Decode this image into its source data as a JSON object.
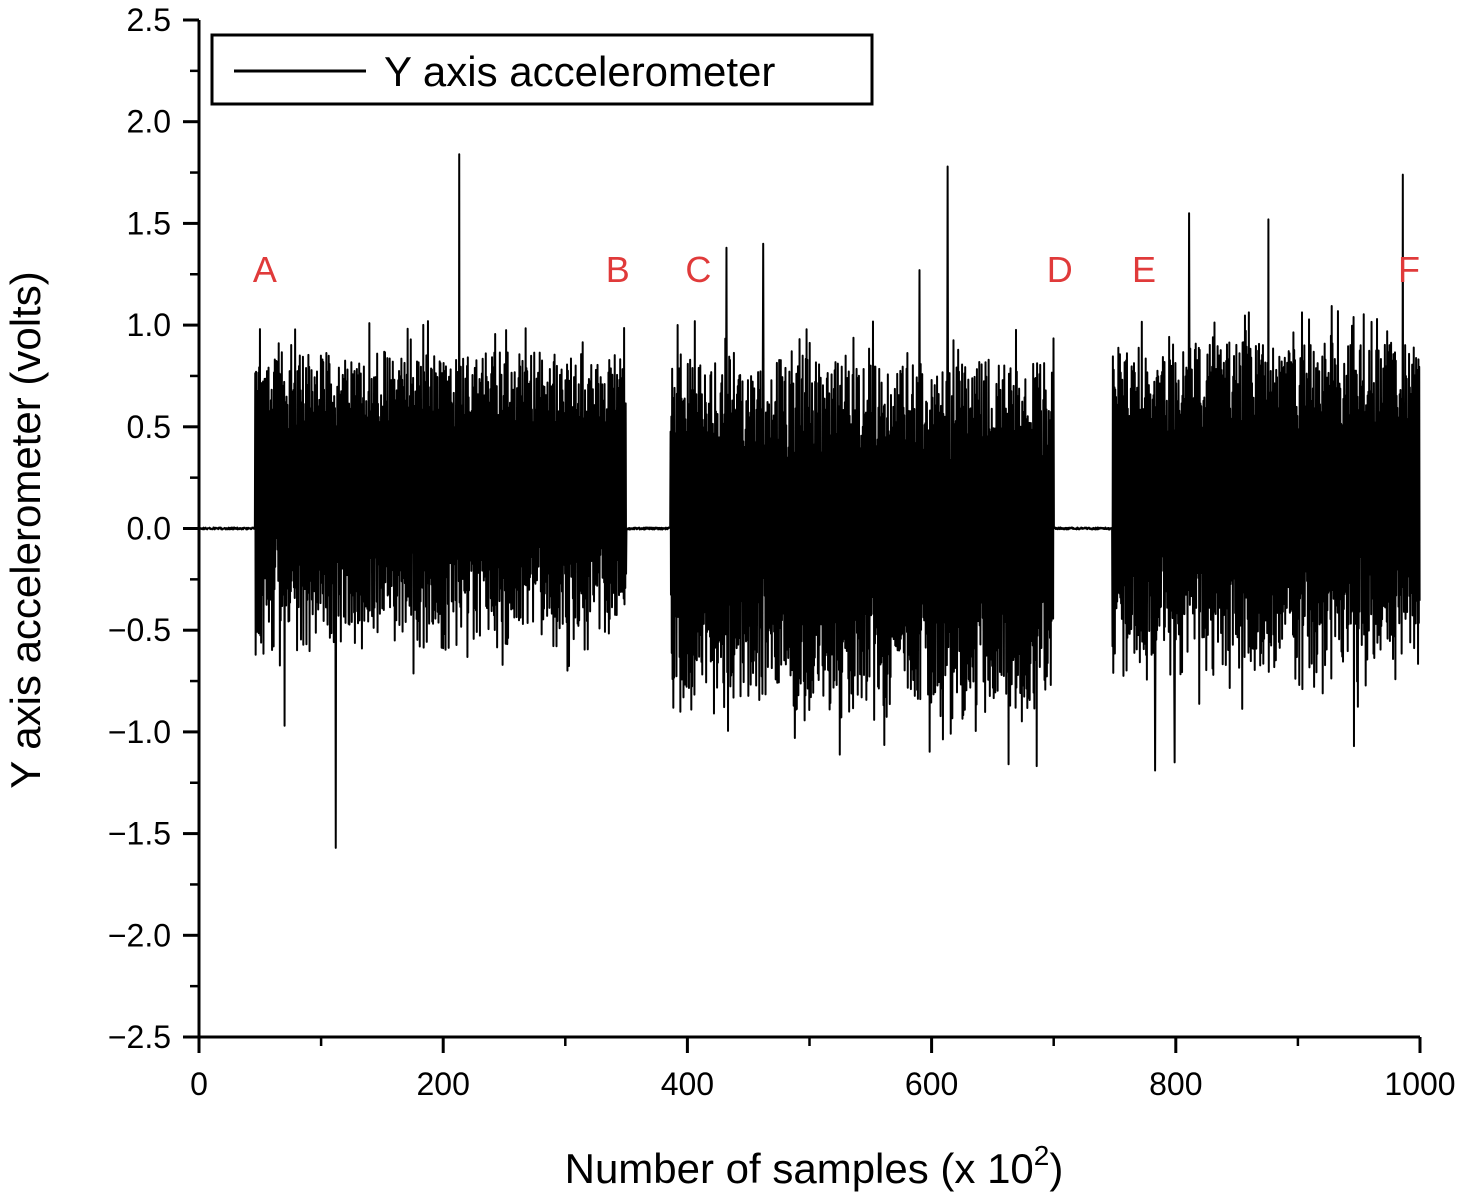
{
  "chart_data": {
    "type": "line",
    "xlabel": "Number of samples (x 10",
    "xlabel_superscript": "2",
    "xlabel_suffix": ")",
    "ylabel": "Y axis accelerometer (volts)",
    "xlim": [
      0,
      1000
    ],
    "ylim": [
      -2.5,
      2.5
    ],
    "x_ticks": [
      0,
      200,
      400,
      600,
      800,
      1000
    ],
    "x_tick_labels": [
      "0",
      "200",
      "400",
      "600",
      "800",
      "1000"
    ],
    "y_ticks": [
      2.5,
      2.0,
      1.5,
      1.0,
      0.5,
      0.0,
      -0.5,
      -1.0,
      -1.5,
      -2.0,
      -2.5
    ],
    "y_tick_labels": [
      "2.5",
      "2.0",
      "1.5",
      "1.0",
      "0.5",
      "0.0",
      "−0.5",
      "−1.0",
      "−1.5",
      "−2.0",
      "−2.5"
    ],
    "grid": false,
    "legend": {
      "position": "top-left",
      "entries": [
        "Y axis accelerometer"
      ]
    },
    "line_color": "#000000",
    "annotation_color": "#e03a3a",
    "region_labels": [
      {
        "text": "A",
        "x": 54,
        "y": 1.28
      },
      {
        "text": "B",
        "x": 343,
        "y": 1.28
      },
      {
        "text": "C",
        "x": 409,
        "y": 1.28
      },
      {
        "text": "D",
        "x": 705,
        "y": 1.28
      },
      {
        "text": "E",
        "x": 774,
        "y": 1.28
      },
      {
        "text": "F",
        "x": 991,
        "y": 1.28
      }
    ],
    "series": [
      {
        "name": "Y axis accelerometer",
        "active_segments": [
          {
            "x_start": 46,
            "x_end": 350,
            "baseline": 0.25,
            "max_amplitude": 0.62
          },
          {
            "x_start": 386,
            "x_end": 700,
            "baseline": 0.05,
            "max_amplitude": 0.78
          },
          {
            "x_start": 748,
            "x_end": 1000,
            "baseline": 0.2,
            "max_amplitude": 0.72
          }
        ],
        "quiet_level": 0.0,
        "spikes": [
          {
            "x": 50,
            "y": 0.98
          },
          {
            "x": 70,
            "y": -0.97
          },
          {
            "x": 112,
            "y": -1.57
          },
          {
            "x": 213,
            "y": 1.84
          },
          {
            "x": 432,
            "y": 1.38
          },
          {
            "x": 462,
            "y": 1.4
          },
          {
            "x": 488,
            "y": -1.03
          },
          {
            "x": 590,
            "y": 1.27
          },
          {
            "x": 613,
            "y": 1.78
          },
          {
            "x": 783,
            "y": -1.19
          },
          {
            "x": 811,
            "y": 1.55
          },
          {
            "x": 799,
            "y": -1.15
          },
          {
            "x": 876,
            "y": 1.52
          },
          {
            "x": 946,
            "y": -1.07
          },
          {
            "x": 986,
            "y": 1.74
          }
        ]
      }
    ]
  }
}
